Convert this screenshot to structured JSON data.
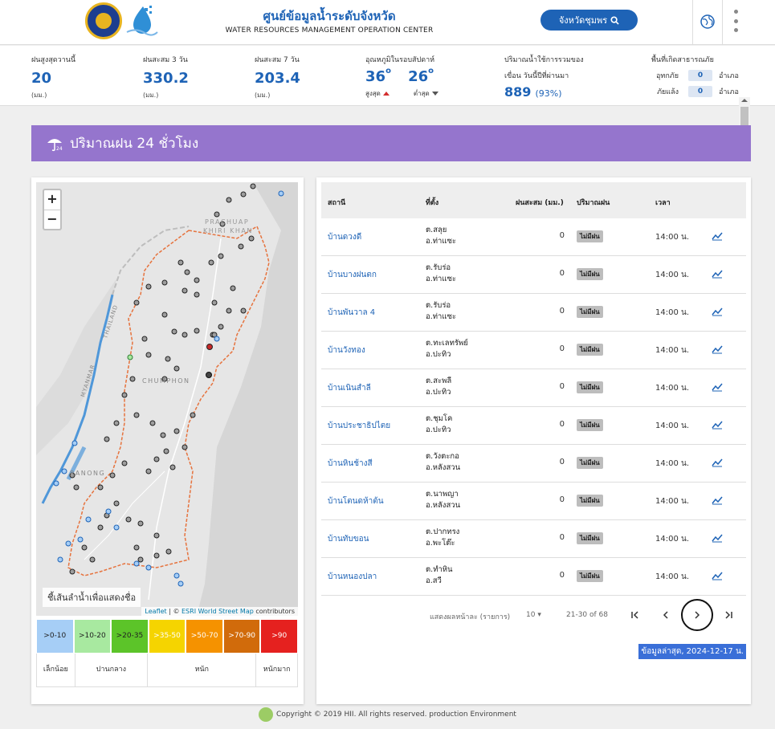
{
  "header": {
    "title": "ศูนย์ข้อมูลน้ำระดับจังหวัด",
    "subtitle": "WATER RESOURCES MANAGEMENT OPERATION CENTER",
    "province_button": "จังหวัดชุมพร",
    "icons": [
      "province-seal-logo",
      "water-drop-logo",
      "search-icon",
      "globe-icon",
      "kebab-menu-icon"
    ]
  },
  "stats": {
    "rain_today": {
      "label": "ฝนสูงสุดวานนี้",
      "value": "20",
      "unit": "(มม.)"
    },
    "rain_3day": {
      "label": "ฝนสะสม 3 วัน",
      "value": "330.2",
      "unit": "(มม.)"
    },
    "rain_7day": {
      "label": "ฝนสะสม 7 วัน",
      "value": "203.4",
      "unit": "(มม.)"
    },
    "temperature": {
      "label": "อุณหภูมิในรอบสัปดาห์",
      "max": "36",
      "min": "26",
      "max_label": "สูงสุด",
      "min_label": "ต่ำสุด"
    },
    "dam": {
      "label1": "ปริมาณน้ำใช้การรวมของ",
      "label2": "เขื่อน วันนี้ปีที่ผ่านมา",
      "value": "889",
      "percent": "(93%)"
    },
    "disaster": {
      "label": "พื้นที่เกิดสาธารณภัย",
      "flood_label": "อุทกภัย",
      "flood_count": "0",
      "drought_label": "ภัยแล้ง",
      "drought_count": "0",
      "unit": "อำเภอ"
    }
  },
  "banner": {
    "title": "ปริมาณฝน 24 ชั่วโมง"
  },
  "map": {
    "zoom_in": "+",
    "zoom_out": "−",
    "tip": "ชี้เส้นลำน้ำเพื่อแสดงชื่อ",
    "attrib_leaflet": "Leaflet",
    "attrib_sep": " | © ",
    "attrib_esri": "ESRI World Street Map",
    "attrib_tail": " contributors",
    "labels": {
      "prachuap1": "PRACHUAP",
      "prachuap2": "KHIRI KHAN",
      "chumphon": "CHUMPHON",
      "ranong": "RANONG",
      "myanmar": "MYANMAR",
      "thailand": "THAILAND"
    }
  },
  "legend": {
    "ranges": [
      {
        "text": ">0-10",
        "color": "#a6cef6"
      },
      {
        "text": ">10-20",
        "color": "#a8e9a0"
      },
      {
        "text": ">20-35",
        "color": "#5cc429"
      },
      {
        "text": ">35-50",
        "color": "#f5d400"
      },
      {
        "text": ">50-70",
        "color": "#f59200"
      },
      {
        "text": ">70-90",
        "color": "#d16b0b"
      },
      {
        "text": ">90",
        "color": "#e5211f"
      }
    ],
    "labels": [
      "เล็กน้อย",
      "ปานกลาง",
      "หนัก",
      "หนักมาก"
    ]
  },
  "table": {
    "headers": {
      "station": "สถานี",
      "location": "ที่ตั้ง",
      "rain": "ฝนสะสม (มม.)",
      "amount": "ปริมาณฝน",
      "time": "เวลา"
    },
    "rows": [
      {
        "station": "บ้านดวงดี",
        "tambon": "ต.สลุย",
        "amphoe": "อ.ท่าแซะ",
        "rain": "0",
        "status": "ไม่มีฝน",
        "time": "14:00 น."
      },
      {
        "station": "บ้านบางฝนตก",
        "tambon": "ต.รับร่อ",
        "amphoe": "อ.ท่าแซะ",
        "rain": "0",
        "status": "ไม่มีฝน",
        "time": "14:00 น."
      },
      {
        "station": "บ้านพันวาล 4",
        "tambon": "ต.รับร่อ",
        "amphoe": "อ.ท่าแซะ",
        "rain": "0",
        "status": "ไม่มีฝน",
        "time": "14:00 น."
      },
      {
        "station": "บ้านวังทอง",
        "tambon": "ต.ทะเลทรัพย์",
        "amphoe": "อ.ปะทิว",
        "rain": "0",
        "status": "ไม่มีฝน",
        "time": "14:00 น."
      },
      {
        "station": "บ้านเนินสำลี",
        "tambon": "ต.สะพลี",
        "amphoe": "อ.ปะทิว",
        "rain": "0",
        "status": "ไม่มีฝน",
        "time": "14:00 น."
      },
      {
        "station": "บ้านประชาธิปไตย",
        "tambon": "ต.ชุมโค",
        "amphoe": "อ.ปะทิว",
        "rain": "0",
        "status": "ไม่มีฝน",
        "time": "14:00 น."
      },
      {
        "station": "บ้านหินช้างสี",
        "tambon": "ต.วังตะกอ",
        "amphoe": "อ.หลังสวน",
        "rain": "0",
        "status": "ไม่มีฝน",
        "time": "14:00 น."
      },
      {
        "station": "บ้านโตนดห้าต้น",
        "tambon": "ต.นาพญา",
        "amphoe": "อ.หลังสวน",
        "rain": "0",
        "status": "ไม่มีฝน",
        "time": "14:00 น."
      },
      {
        "station": "บ้านทับขอน",
        "tambon": "ต.ปากทรง",
        "amphoe": "อ.พะโต๊ะ",
        "rain": "0",
        "status": "ไม่มีฝน",
        "time": "14:00 น."
      },
      {
        "station": "บ้านหนองปลา",
        "tambon": "ต.ทำหิน",
        "amphoe": "อ.สวี",
        "rain": "0",
        "status": "ไม่มีฝน",
        "time": "14:00 น."
      }
    ],
    "pager": {
      "per_page_label": "แสดงผลหน้าละ (รายการ)",
      "per_page": "10",
      "range": "21-30 of 68"
    },
    "updated": "ข้อมูลล่าสุด, 2024-12-17 น."
  },
  "footer": {
    "text": "Copyright © 2019 HII. All rights reserved. production Environment"
  }
}
